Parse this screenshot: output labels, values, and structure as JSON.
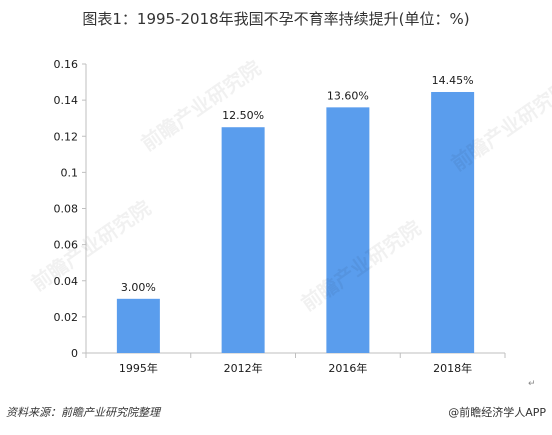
{
  "title": "图表1：1995-2018年我国不孕不育率持续提升(单位：%)",
  "footer": {
    "source": "资料来源：前瞻产业研究院整理",
    "brand": "@前瞻经济学人APP"
  },
  "watermark_text": "前瞻产业研究院",
  "colors": {
    "bar": "#5a9ded",
    "axis": "#bfbfbf",
    "text": "#1a1a1a"
  },
  "chart_data": {
    "type": "bar",
    "title": "图表1：1995-2018年我国不孕不育率持续提升(单位：%)",
    "categories": [
      "1995年",
      "2012年",
      "2016年",
      "2018年"
    ],
    "values": [
      0.03,
      0.125,
      0.136,
      0.1445
    ],
    "data_labels": [
      "3.00%",
      "12.50%",
      "13.60%",
      "14.45%"
    ],
    "y_ticks": [
      "0",
      "0.02",
      "0.04",
      "0.06",
      "0.08",
      "0.1",
      "0.12",
      "0.14",
      "0.16"
    ],
    "xlabel": "",
    "ylabel": "",
    "ylim": [
      0,
      0.16
    ],
    "grid": false,
    "legend": "none"
  }
}
